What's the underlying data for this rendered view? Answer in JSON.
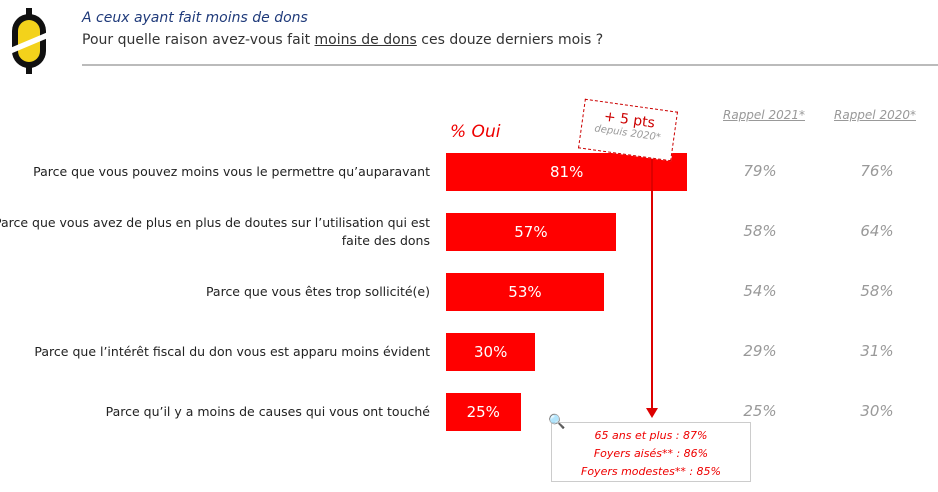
{
  "header": {
    "subtitle": "A ceux ayant fait moins de dons",
    "question_before": "Pour quelle raison avez-vous fait ",
    "question_underlined": "moins de dons",
    "question_after": " ces douze derniers mois ?"
  },
  "chart_data": {
    "type": "bar",
    "orientation": "horizontal",
    "title": "% Oui",
    "xlim": [
      0,
      100
    ],
    "categories": [
      "Parce que vous pouvez moins vous le permettre qu’auparavant",
      "Parce que vous avez de plus en plus de doutes sur l’utilisation qui est faite des dons",
      "Parce que vous êtes trop sollicité(e)",
      "Parce que l’intérêt fiscal du don vous est apparu moins évident",
      "Parce qu’il y a moins de causes qui vous ont touché"
    ],
    "values": [
      81,
      57,
      53,
      30,
      25
    ],
    "value_labels": [
      "81%",
      "57%",
      "53%",
      "30%",
      "25%"
    ],
    "series": [
      {
        "name": "Rappel 2021*",
        "values": [
          "79%",
          "58%",
          "54%",
          "29%",
          "25%"
        ]
      },
      {
        "name": "Rappel 2020*",
        "values": [
          "76%",
          "64%",
          "58%",
          "31%",
          "30%"
        ]
      }
    ],
    "bar_color": "#ff0000"
  },
  "callout": {
    "delta": "+ 5 pts",
    "since": "depuis 2020*"
  },
  "detail": [
    "65 ans et plus : 87%",
    "Foyers aisés** : 86%",
    "Foyers modestes** : 85%"
  ]
}
